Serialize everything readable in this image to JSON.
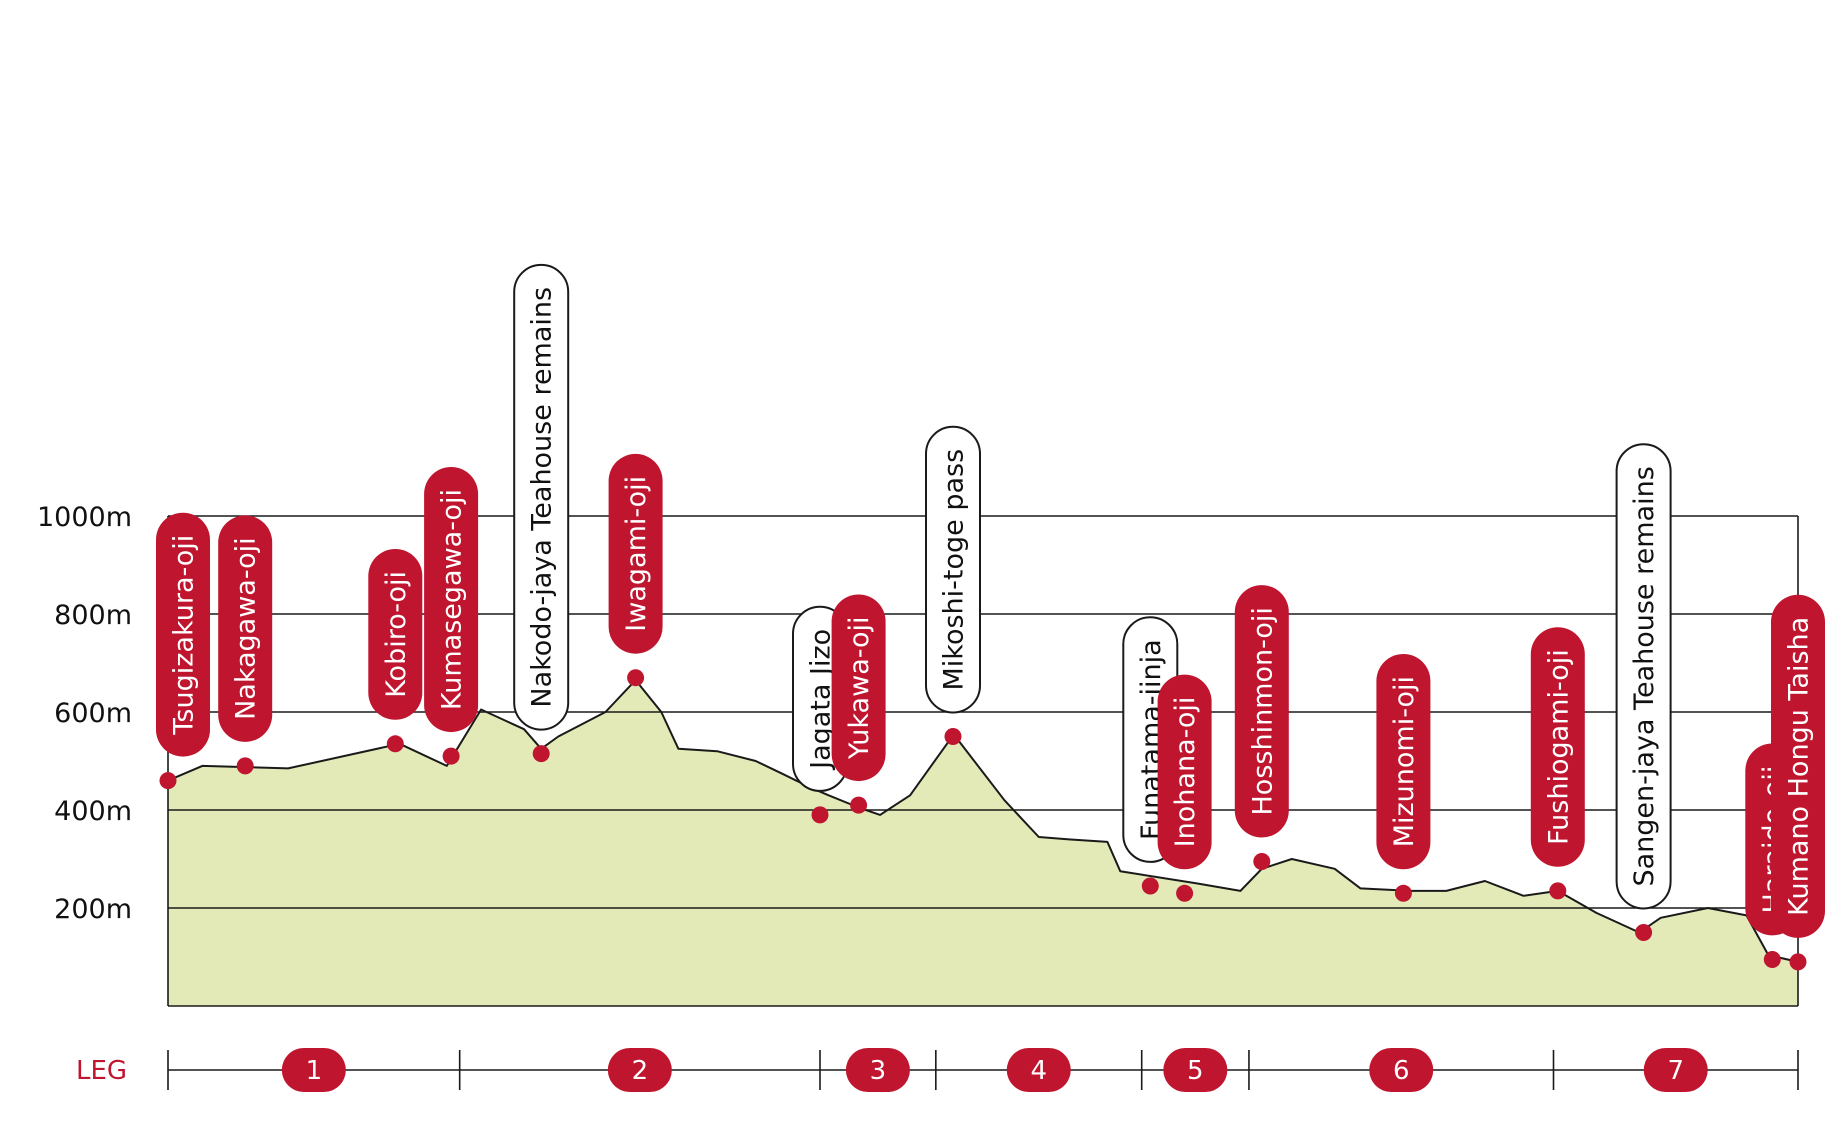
{
  "chart_data": {
    "type": "area",
    "title": "",
    "xlabel": "",
    "ylabel": "",
    "ylim": [
      0,
      1000
    ],
    "yticks": [
      200,
      400,
      600,
      800,
      1000
    ],
    "ytick_labels": [
      "200m",
      "400m",
      "600m",
      "800m",
      "1000m"
    ],
    "grid": true,
    "x_unit": "km",
    "xlim": [
      0,
      38
    ],
    "profile": [
      [
        0.0,
        460
      ],
      [
        0.8,
        490
      ],
      [
        2.8,
        485
      ],
      [
        5.4,
        535
      ],
      [
        6.5,
        490
      ],
      [
        7.3,
        605
      ],
      [
        8.3,
        565
      ],
      [
        8.7,
        525
      ],
      [
        9.1,
        550
      ],
      [
        10.2,
        600
      ],
      [
        10.9,
        665
      ],
      [
        11.5,
        600
      ],
      [
        11.9,
        525
      ],
      [
        12.8,
        520
      ],
      [
        13.7,
        500
      ],
      [
        14.3,
        475
      ],
      [
        15.0,
        445
      ],
      [
        15.4,
        430
      ],
      [
        16.1,
        405
      ],
      [
        16.6,
        390
      ],
      [
        17.3,
        430
      ],
      [
        18.2,
        540
      ],
      [
        18.4,
        545
      ],
      [
        19.5,
        420
      ],
      [
        20.3,
        345
      ],
      [
        21.0,
        340
      ],
      [
        21.9,
        335
      ],
      [
        22.2,
        275
      ],
      [
        24.0,
        250
      ],
      [
        25.0,
        235
      ],
      [
        25.5,
        280
      ],
      [
        26.2,
        300
      ],
      [
        27.2,
        280
      ],
      [
        27.8,
        240
      ],
      [
        29.0,
        235
      ],
      [
        29.8,
        235
      ],
      [
        30.7,
        255
      ],
      [
        31.6,
        225
      ],
      [
        32.4,
        235
      ],
      [
        33.3,
        190
      ],
      [
        34.3,
        150
      ],
      [
        34.8,
        180
      ],
      [
        35.9,
        200
      ],
      [
        36.8,
        185
      ],
      [
        37.3,
        105
      ],
      [
        37.5,
        100
      ],
      [
        38.0,
        90
      ]
    ],
    "waypoints": [
      {
        "label": "Tsugizakura-oji",
        "x": 0.0,
        "y": 460,
        "shrine": true
      },
      {
        "label": "Nakagawa-oji",
        "x": 1.8,
        "y": 490,
        "shrine": true
      },
      {
        "label": "Kobiro-oji",
        "x": 5.3,
        "y": 535,
        "shrine": true
      },
      {
        "label": "Kumasegawa-oji",
        "x": 6.6,
        "y": 510,
        "shrine": true
      },
      {
        "label": "Nakodo-jaya Teahouse remains",
        "x": 8.7,
        "y": 515,
        "shrine": false
      },
      {
        "label": "Iwagami-oji",
        "x": 10.9,
        "y": 670,
        "shrine": true
      },
      {
        "label": "Jagata Jizo",
        "x": 15.2,
        "y": 390,
        "shrine": false
      },
      {
        "label": "Yukawa-oji",
        "x": 16.1,
        "y": 410,
        "shrine": true
      },
      {
        "label": "Mikoshi-toge pass",
        "x": 18.3,
        "y": 550,
        "shrine": false
      },
      {
        "label": "Funatama-jinja",
        "x": 22.9,
        "y": 245,
        "shrine": false
      },
      {
        "label": "Inohana-oji",
        "x": 23.7,
        "y": 230,
        "shrine": true
      },
      {
        "label": "Hosshinmon-oji",
        "x": 25.5,
        "y": 295,
        "shrine": true
      },
      {
        "label": "Mizunomi-oji",
        "x": 28.8,
        "y": 230,
        "shrine": true
      },
      {
        "label": "Fushiogami-oji",
        "x": 32.4,
        "y": 235,
        "shrine": true
      },
      {
        "label": "Sangen-jaya Teahouse remains",
        "x": 34.4,
        "y": 150,
        "shrine": false
      },
      {
        "label": "Haraido-oji",
        "x": 37.4,
        "y": 95,
        "shrine": true
      },
      {
        "label": "Kumano Hongu Taisha",
        "x": 38.0,
        "y": 90,
        "shrine": true
      }
    ],
    "legs": {
      "title": "LEG",
      "boundaries": [
        0.0,
        6.8,
        15.2,
        17.9,
        22.7,
        25.2,
        32.3,
        38.0
      ],
      "labels": [
        "1",
        "2",
        "3",
        "4",
        "5",
        "6",
        "7"
      ]
    }
  },
  "colors": {
    "shrine": "#c0152f",
    "fill": "#e3eab8",
    "line": "#1a1a1a",
    "text_on_shrine": "#ffffff",
    "text_on_other": "#111111"
  }
}
